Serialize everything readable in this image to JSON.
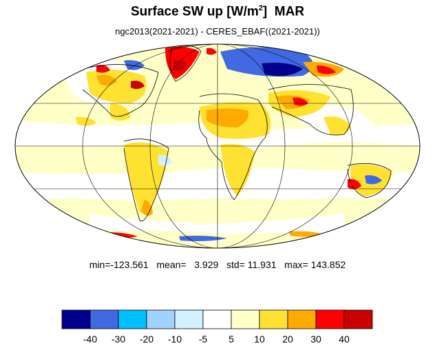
{
  "title": {
    "main": "Surface SW up [W/m",
    "superscript": "2",
    "close": "]",
    "month": "MAR"
  },
  "subtitle": "ngc2013(2021-2021) - CERES_EBAF((2021-2021))",
  "stats": {
    "min_label": "min=",
    "min": "-123.561",
    "mean_label": "mean=",
    "mean": "3.929",
    "std_label": "std=",
    "std": "11.931",
    "max_label": "max=",
    "max": "143.852"
  },
  "map": {
    "projection": "mollweide",
    "background_color": "#ffffc8",
    "outline_color": "#000000"
  },
  "colorbar": {
    "colors": [
      "#00008c",
      "#4169e1",
      "#00bfff",
      "#a0d2ff",
      "#d2f0ff",
      "#ffffff",
      "#ffffc8",
      "#ffe132",
      "#ffaa00",
      "#ff0000",
      "#c80000"
    ],
    "tick_labels": [
      "-40",
      "-30",
      "-20",
      "-10",
      "-5",
      "5",
      "10",
      "20",
      "30",
      "40"
    ]
  }
}
